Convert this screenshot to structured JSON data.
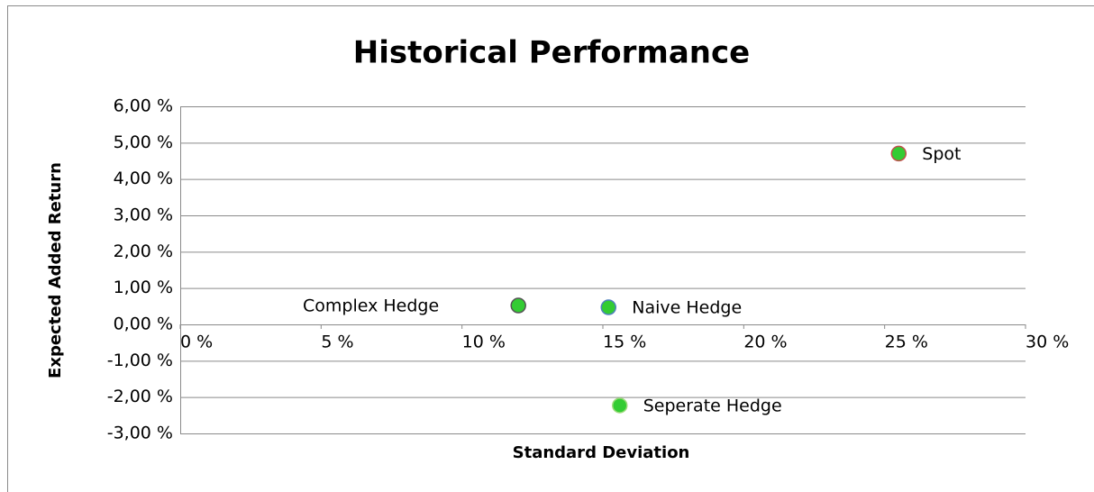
{
  "chart_data": {
    "type": "scatter",
    "title": "Historical Performance",
    "x_label": "Standard Deviation",
    "y_label": "Expected Added Return",
    "xlim": [
      0,
      30
    ],
    "ylim": [
      -3,
      6
    ],
    "xticks": [
      {
        "value": 0,
        "label": "0 %"
      },
      {
        "value": 5,
        "label": "5 %"
      },
      {
        "value": 10,
        "label": "10 %"
      },
      {
        "value": 15,
        "label": "15 %"
      },
      {
        "value": 20,
        "label": "20 %"
      },
      {
        "value": 25,
        "label": "25 %"
      },
      {
        "value": 30,
        "label": "30 %"
      }
    ],
    "yticks": [
      {
        "value": 6,
        "label": "6,00 %"
      },
      {
        "value": 5,
        "label": "5,00 %"
      },
      {
        "value": 4,
        "label": "4,00 %"
      },
      {
        "value": 3,
        "label": "3,00 %"
      },
      {
        "value": 2,
        "label": "2,00 %"
      },
      {
        "value": 1,
        "label": "1,00 %"
      },
      {
        "value": 0,
        "label": "0,00 %"
      },
      {
        "value": -1,
        "label": "-1,00 %"
      },
      {
        "value": -2,
        "label": "-2,00 %"
      },
      {
        "value": -3,
        "label": "-3,00 %"
      }
    ],
    "grid": true,
    "series": [
      {
        "name": "Spot",
        "color": "#33cc33",
        "edge": "#c0504d",
        "label_side": "right",
        "x": [
          25.5
        ],
        "values": [
          4.7
        ]
      },
      {
        "name": "Complex Hedge",
        "color": "#33cc33",
        "edge": "#555555",
        "label_side": "left",
        "x": [
          12.0
        ],
        "values": [
          0.52
        ]
      },
      {
        "name": "Naive Hedge",
        "color": "#33cc33",
        "edge": "#4f81bd",
        "label_side": "right",
        "x": [
          15.2
        ],
        "values": [
          0.47
        ]
      },
      {
        "name": "Seperate Hedge",
        "color": "#33cc33",
        "edge": "#9bdb7a",
        "label_side": "right",
        "x": [
          15.6
        ],
        "values": [
          -2.23
        ]
      }
    ]
  }
}
